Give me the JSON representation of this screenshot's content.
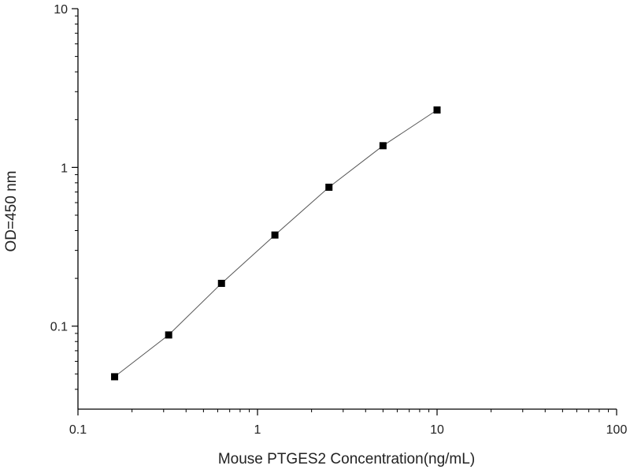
{
  "chart_data": {
    "type": "scatter",
    "title": "",
    "xlabel": "Mouse PTGES2 Concentration(ng/mL)",
    "ylabel": "OD=450 nm",
    "x_scale": "log",
    "y_scale": "log",
    "xlim": [
      0.1,
      100
    ],
    "ylim": [
      0.03,
      10
    ],
    "x_ticks": [
      {
        "value": 0.1,
        "label": "0.1"
      },
      {
        "value": 1,
        "label": "1"
      },
      {
        "value": 10,
        "label": "10"
      },
      {
        "value": 100,
        "label": "100"
      }
    ],
    "y_ticks": [
      {
        "value": 0.1,
        "label": "0.1"
      },
      {
        "value": 1,
        "label": "1"
      },
      {
        "value": 10,
        "label": "10"
      }
    ],
    "grid": false,
    "legend": "none",
    "marker": "square",
    "connect_points": true,
    "colors": {
      "marker": "#000000",
      "line": "#555555",
      "axis": "#000000",
      "text": "#222222"
    },
    "series": [
      {
        "x": [
          0.16,
          0.32,
          0.63,
          1.25,
          2.5,
          5,
          10
        ],
        "y": [
          0.048,
          0.088,
          0.186,
          0.375,
          0.75,
          1.37,
          2.3
        ]
      }
    ]
  }
}
